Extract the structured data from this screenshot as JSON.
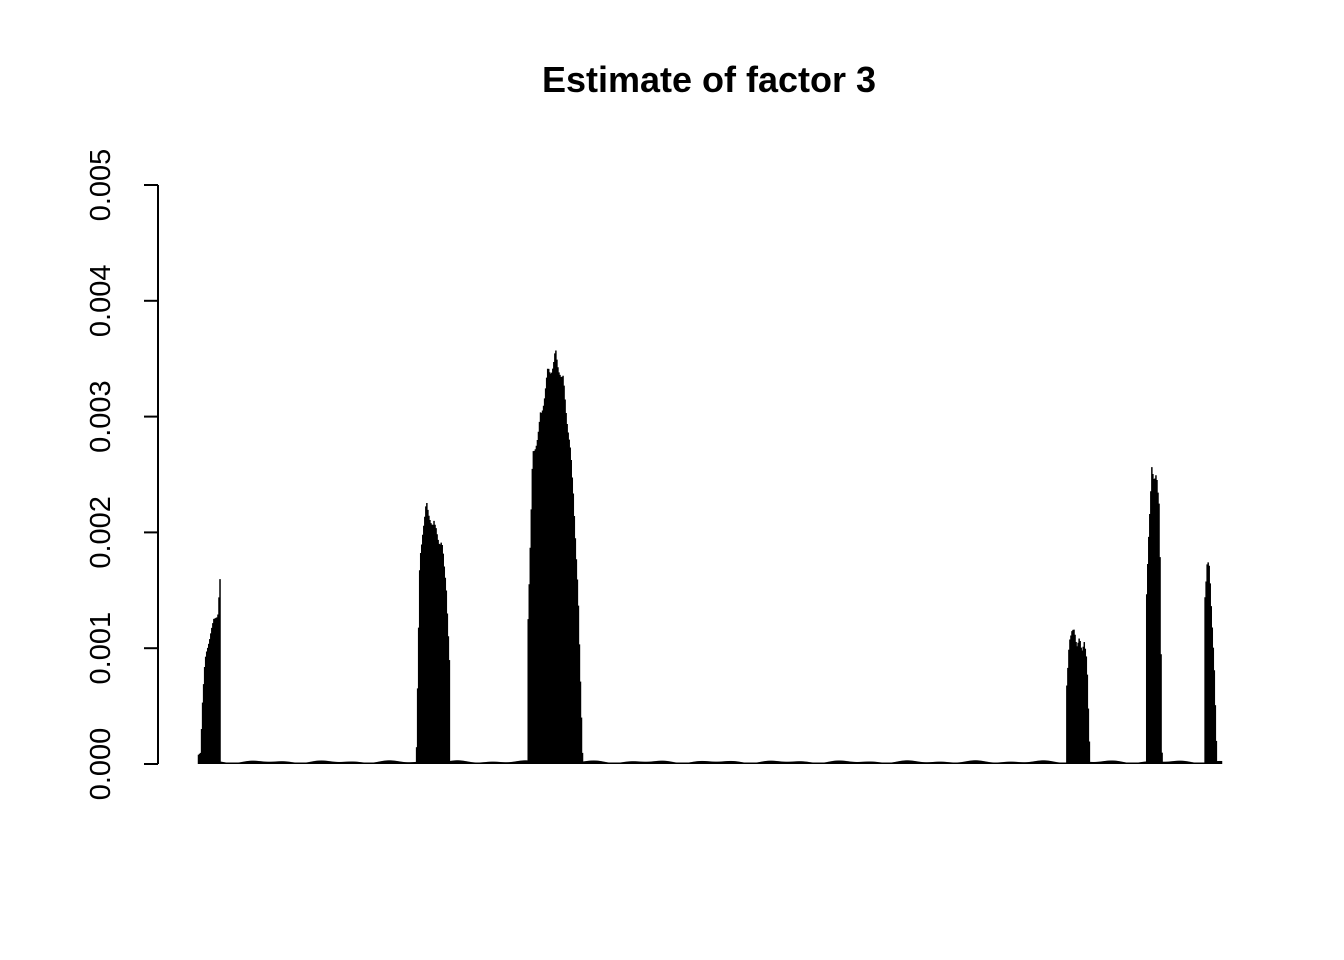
{
  "chart_data": {
    "type": "bar",
    "title": "Estimate of factor 3",
    "xlabel": "",
    "ylabel": "",
    "ylim": [
      0,
      0.005
    ],
    "y_ticks": [
      "0.000",
      "0.001",
      "0.002",
      "0.003",
      "0.004",
      "0.005"
    ],
    "y_tick_values": [
      0,
      0.001,
      0.002,
      0.003,
      0.004,
      0.005
    ],
    "x_axis_shown": false,
    "grid": false,
    "bar_color": "#000000",
    "n_points": 1000,
    "baseline_value": 2e-05,
    "peaks": [
      {
        "start": 0,
        "end": 21,
        "profile": [
          8e-05,
          0.0001,
          0.0006,
          0.0009,
          0.001,
          0.0011,
          0.0012,
          0.00125,
          0.0013,
          0.00133,
          0.00163
        ]
      },
      {
        "start": 213,
        "end": 245,
        "profile": [
          0.00015,
          0.0018,
          0.0021,
          0.00228,
          0.0022,
          0.0021,
          0.0021,
          0.00195,
          0.0019,
          0.0016,
          0.0009
        ]
      },
      {
        "start": 322,
        "end": 375,
        "profile": [
          0.0013,
          0.0027,
          0.0029,
          0.0031,
          0.0034,
          0.0035,
          0.0036,
          0.0035,
          0.0033,
          0.0029,
          0.0024,
          0.0015,
          0.0001
        ]
      },
      {
        "start": 848,
        "end": 870,
        "profile": [
          0.0007,
          0.0011,
          0.00115,
          0.0012,
          0.00105,
          0.0011,
          0.001,
          0.0011,
          0.0009,
          0.0002
        ]
      },
      {
        "start": 926,
        "end": 941,
        "profile": [
          0.0015,
          0.0021,
          0.00267,
          0.0025,
          0.0025,
          0.0023,
          0.0001
        ]
      },
      {
        "start": 983,
        "end": 994,
        "profile": [
          0.0015,
          0.0018,
          0.0017,
          0.0013,
          0.0009,
          0.0002
        ]
      }
    ]
  }
}
